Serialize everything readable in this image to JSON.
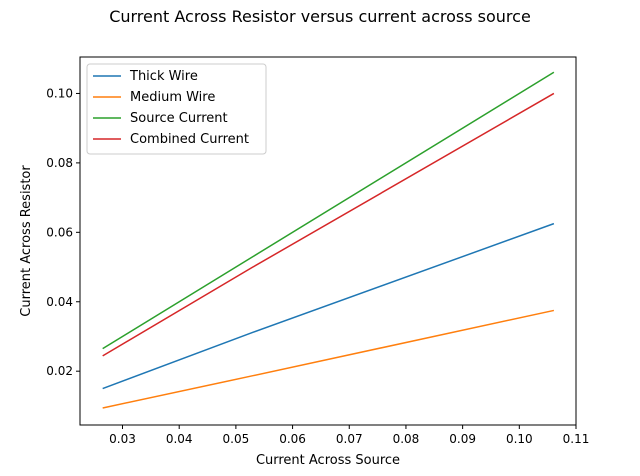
{
  "chart_data": {
    "type": "line",
    "title": "Current Across Resistor versus current across source",
    "xlabel": "Current Across Source",
    "ylabel": "Current Across Resistor",
    "xlim": [
      0.0225,
      0.11
    ],
    "ylim": [
      0.0045,
      0.1105
    ],
    "xticks": [
      0.03,
      0.04,
      0.05,
      0.06,
      0.07,
      0.08,
      0.09,
      0.1,
      0.11
    ],
    "xtick_labels": [
      "0.03",
      "0.04",
      "0.05",
      "0.06",
      "0.07",
      "0.08",
      "0.09",
      "0.10",
      "0.11"
    ],
    "yticks": [
      0.02,
      0.04,
      0.06,
      0.08,
      0.1
    ],
    "ytick_labels": [
      "0.02",
      "0.04",
      "0.06",
      "0.08",
      "0.10"
    ],
    "grid": false,
    "legend_position": "top-left",
    "x": [
      0.0265,
      0.053,
      0.1061
    ],
    "series": [
      {
        "name": "Thick Wire",
        "color": "#1f77b4",
        "values": [
          0.015,
          0.0312,
          0.0625
        ]
      },
      {
        "name": "Medium Wire",
        "color": "#ff7f0e",
        "values": [
          0.0094,
          0.0187,
          0.0375
        ]
      },
      {
        "name": "Source Current",
        "color": "#2ca02c",
        "values": [
          0.0265,
          0.053,
          0.1061
        ]
      },
      {
        "name": "Combined Current",
        "color": "#d62728",
        "values": [
          0.0244,
          0.05,
          0.1
        ]
      }
    ]
  }
}
